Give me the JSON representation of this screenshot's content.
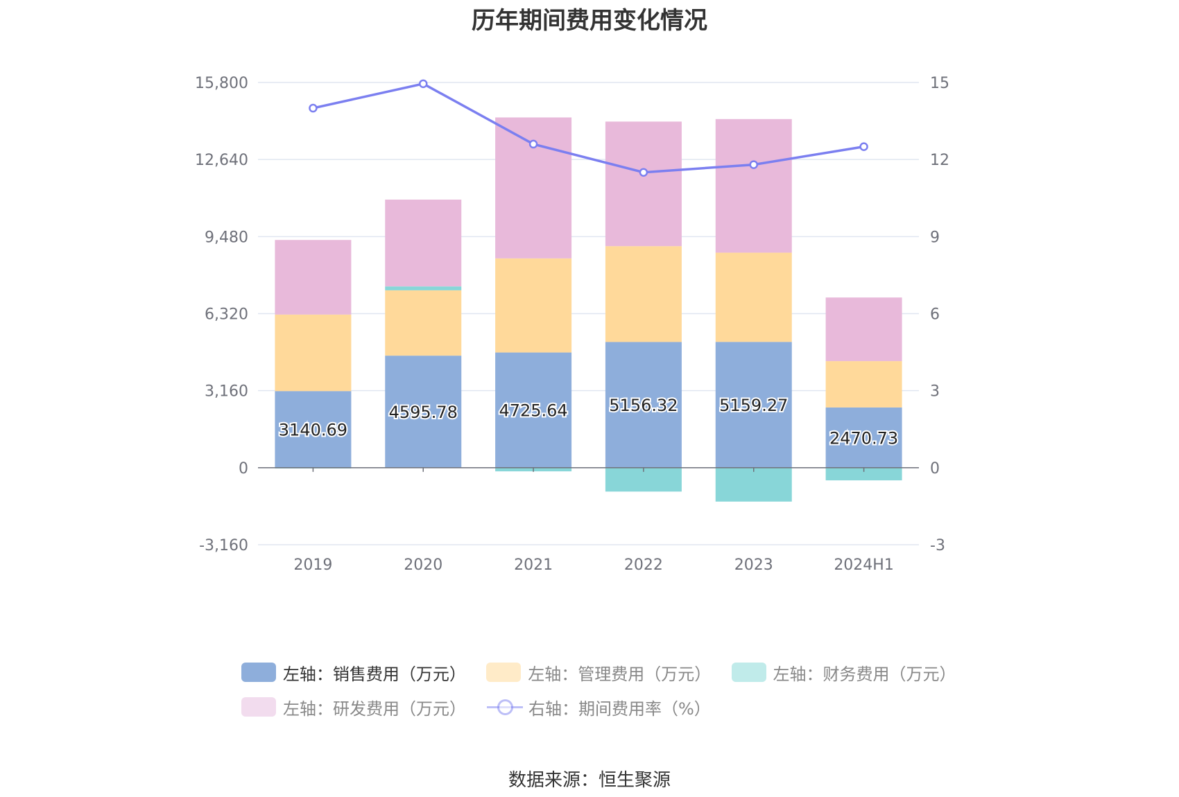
{
  "title": "历年期间费用变化情况",
  "source": "数据来源：恒生聚源",
  "legend": [
    {
      "label": "左轴：销售费用（万元）",
      "color": "#8eaedb"
    },
    {
      "label": "左轴：管理费用（万元）",
      "color": "#ffebc8"
    },
    {
      "label": "左轴：财务费用（万元）",
      "color": "#c0ebea"
    },
    {
      "label": "左轴：研发费用（万元）",
      "color": "#f2dcee"
    },
    {
      "label": "右轴：期间费用率（%）",
      "color": "#7b7ff0"
    }
  ],
  "chart_data": {
    "type": "bar",
    "stacked": true,
    "categories": [
      "2019",
      "2020",
      "2021",
      "2022",
      "2023",
      "2024H1"
    ],
    "series": [
      {
        "name": "左轴：销售费用（万元）",
        "axis": "left",
        "color": "#8eaedb",
        "values": [
          3140.69,
          4595.78,
          4725.64,
          5156.32,
          5159.27,
          2470.73
        ],
        "labels": [
          "3140.69",
          "4595.78",
          "4725.64",
          "5156.32",
          "5159.27",
          "2470.73"
        ]
      },
      {
        "name": "左轴：管理费用（万元）",
        "axis": "left",
        "color": "#ffd99a",
        "values": [
          3140,
          2680,
          3860,
          3930,
          3660,
          1900
        ]
      },
      {
        "name": "左轴：财务费用（万元）",
        "axis": "left",
        "color": "#88d6d8",
        "values": [
          -30,
          160,
          -150,
          -980,
          -1390,
          -520
        ]
      },
      {
        "name": "左轴：研发费用（万元）",
        "axis": "left",
        "color": "#e8b9da",
        "values": [
          3060,
          3560,
          5780,
          5110,
          5480,
          2610
        ]
      },
      {
        "name": "右轴：期间费用率（%）",
        "axis": "right",
        "type": "line",
        "color": "#7b7ff0",
        "values": [
          14.0,
          14.95,
          12.6,
          11.5,
          11.8,
          12.5
        ]
      }
    ],
    "left_axis": {
      "ylim": [
        -3160,
        15800
      ],
      "ticks": [
        "-3,160",
        "0",
        "3,160",
        "6,320",
        "9,480",
        "12,640",
        "15,800"
      ]
    },
    "right_axis": {
      "ylim": [
        -3,
        15
      ],
      "ticks": [
        "-3",
        "0",
        "3",
        "6",
        "9",
        "12",
        "15"
      ]
    },
    "grid": true,
    "legend_position": "bottom"
  }
}
